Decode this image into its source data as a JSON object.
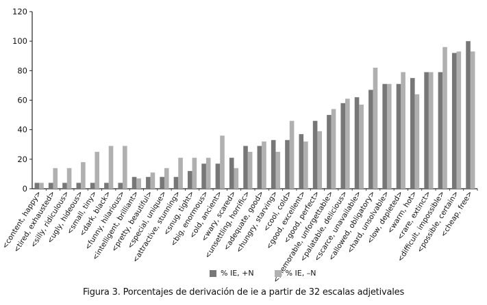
{
  "chart_data": {
    "type": "bar",
    "ylim": [
      0,
      120
    ],
    "yticks": [
      0,
      20,
      40,
      60,
      80,
      100,
      120
    ],
    "grid": false,
    "categories": [
      "<content, happy>",
      "<tired, exhausted>",
      "<silly, ridiculous>",
      "<ugly, hideous>",
      "<small, tiny>",
      "<dark, black>",
      "<funny, hilarious>",
      "<intelligent, brilliant>",
      "<pretty, beautiful>",
      "<special, unique>",
      "<attractive, stunning>",
      "<snug, tight>",
      "<big, enormous>",
      "<old, ancient>",
      "<wary, scared>",
      "<unsettling, horrific>",
      "<adequate, good>",
      "<hungry, starving>",
      "<cool, cold>",
      "<good, excellent>",
      "<good, perfect>",
      "<memorable, unforgettable>",
      "<palatable, delicious>",
      "<scarce, unavailable>",
      "<allowed, obligatory>",
      "<hard, unsolvable>",
      "<low, depleted>",
      "<warm, hot>",
      "<rare, extinct>",
      "<difficult, impossible>",
      "<possible, certain>",
      "<cheap, free>"
    ],
    "series": [
      {
        "name": "% IE, +N",
        "color": "#777777",
        "values": [
          4,
          4,
          4,
          4,
          4,
          4,
          4,
          8,
          8,
          8,
          8,
          12,
          17,
          17,
          21,
          29,
          29,
          33,
          33,
          37,
          46,
          50,
          58,
          62,
          67,
          71,
          71,
          75,
          79,
          79,
          92,
          100
        ]
      },
      {
        "name": "% IE, –N",
        "color": "#b0b0b0",
        "values": [
          4,
          14,
          14,
          18,
          25,
          29,
          29,
          7,
          11,
          14,
          21,
          21,
          21,
          36,
          14,
          25,
          32,
          25,
          46,
          32,
          39,
          54,
          61,
          57,
          82,
          71,
          79,
          64,
          79,
          96,
          93,
          93
        ]
      }
    ],
    "legend_position": "bottom-center"
  },
  "legend": [
    {
      "label": "% IE, +N",
      "color": "#777777"
    },
    {
      "label": "% IE, –N",
      "color": "#b0b0b0"
    }
  ],
  "caption": "Figura 3. Porcentajes de derivación de ie a partir de 32 escalas adjetivales"
}
